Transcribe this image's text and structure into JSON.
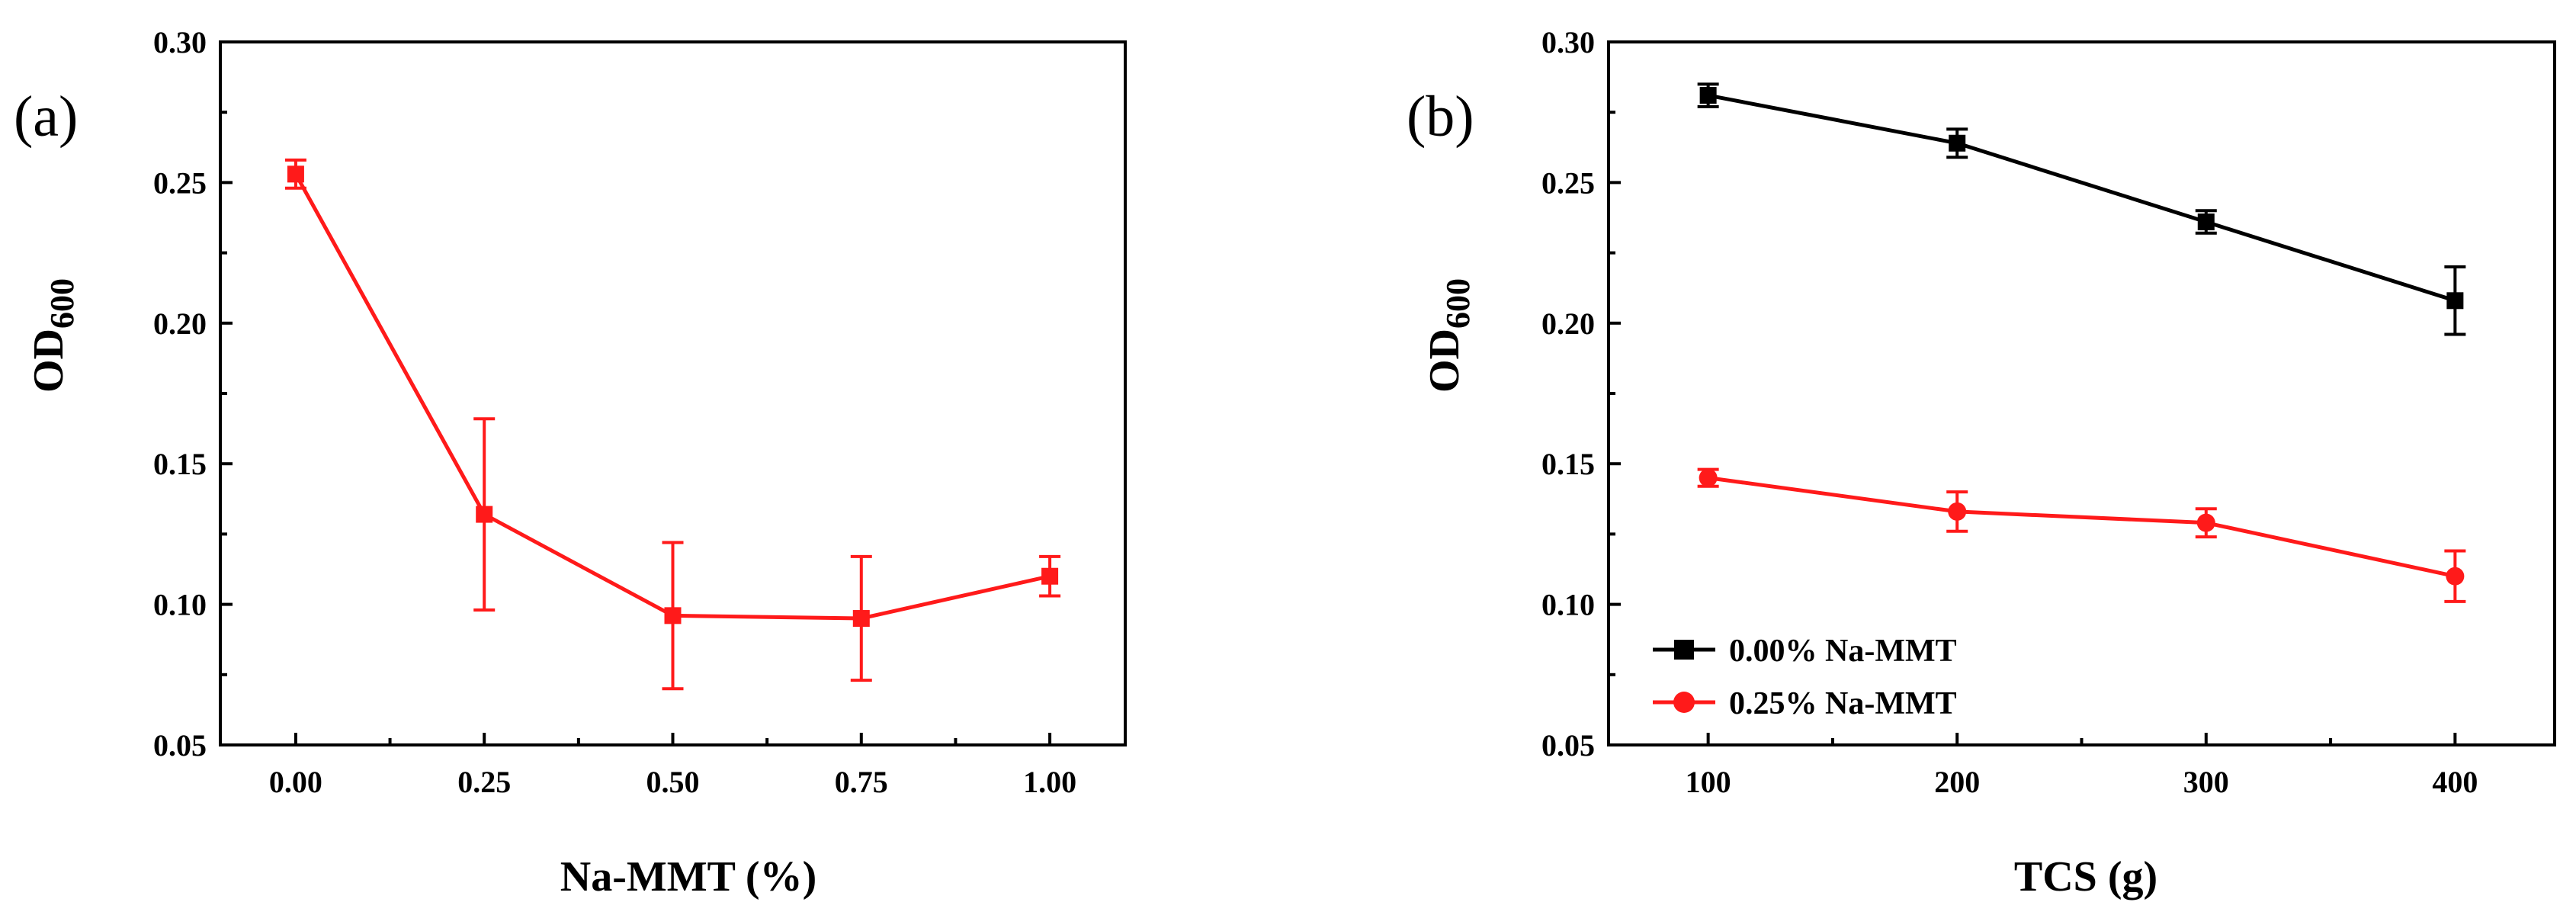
{
  "chart_data": [
    {
      "panel_label": "(a)",
      "type": "line",
      "xlabel": "Na-MMT (%)",
      "ylabel_main": "OD",
      "ylabel_sub": "600",
      "xlim": [
        -0.1,
        1.1
      ],
      "ylim": [
        0.05,
        0.3
      ],
      "xticks": [
        0.0,
        0.25,
        0.5,
        0.75,
        1.0
      ],
      "xtick_labels": [
        "0.00",
        "0.25",
        "0.50",
        "0.75",
        "1.00"
      ],
      "yticks": [
        0.05,
        0.1,
        0.15,
        0.2,
        0.25,
        0.3
      ],
      "ytick_labels": [
        "0.05",
        "0.10",
        "0.15",
        "0.20",
        "0.25",
        "0.30"
      ],
      "series": [
        {
          "name": "",
          "color": "#ff1a1a",
          "marker": "square",
          "x": [
            0.0,
            0.25,
            0.5,
            0.75,
            1.0
          ],
          "values": [
            0.253,
            0.132,
            0.096,
            0.095,
            0.11
          ],
          "errors": [
            0.005,
            0.034,
            0.026,
            0.022,
            0.007
          ]
        }
      ],
      "legend": null
    },
    {
      "panel_label": "(b)",
      "type": "line",
      "xlabel": "TCS (g)",
      "ylabel_main": "OD",
      "ylabel_sub": "600",
      "xlim": [
        60,
        440
      ],
      "ylim": [
        0.05,
        0.3
      ],
      "xticks": [
        100,
        200,
        300,
        400
      ],
      "xtick_labels": [
        "100",
        "200",
        "300",
        "400"
      ],
      "yticks": [
        0.05,
        0.1,
        0.15,
        0.2,
        0.25,
        0.3
      ],
      "ytick_labels": [
        "0.05",
        "0.10",
        "0.15",
        "0.20",
        "0.25",
        "0.30"
      ],
      "series": [
        {
          "name": "0.00% Na-MMT",
          "color": "#000000",
          "marker": "square",
          "x": [
            100,
            200,
            300,
            400
          ],
          "values": [
            0.281,
            0.264,
            0.236,
            0.208
          ],
          "errors": [
            0.004,
            0.005,
            0.004,
            0.012
          ]
        },
        {
          "name": "0.25% Na-MMT",
          "color": "#ff1a1a",
          "marker": "circle",
          "x": [
            100,
            200,
            300,
            400
          ],
          "values": [
            0.145,
            0.133,
            0.129,
            0.11
          ],
          "errors": [
            0.003,
            0.007,
            0.005,
            0.009
          ]
        }
      ],
      "legend": "lower-left"
    }
  ]
}
